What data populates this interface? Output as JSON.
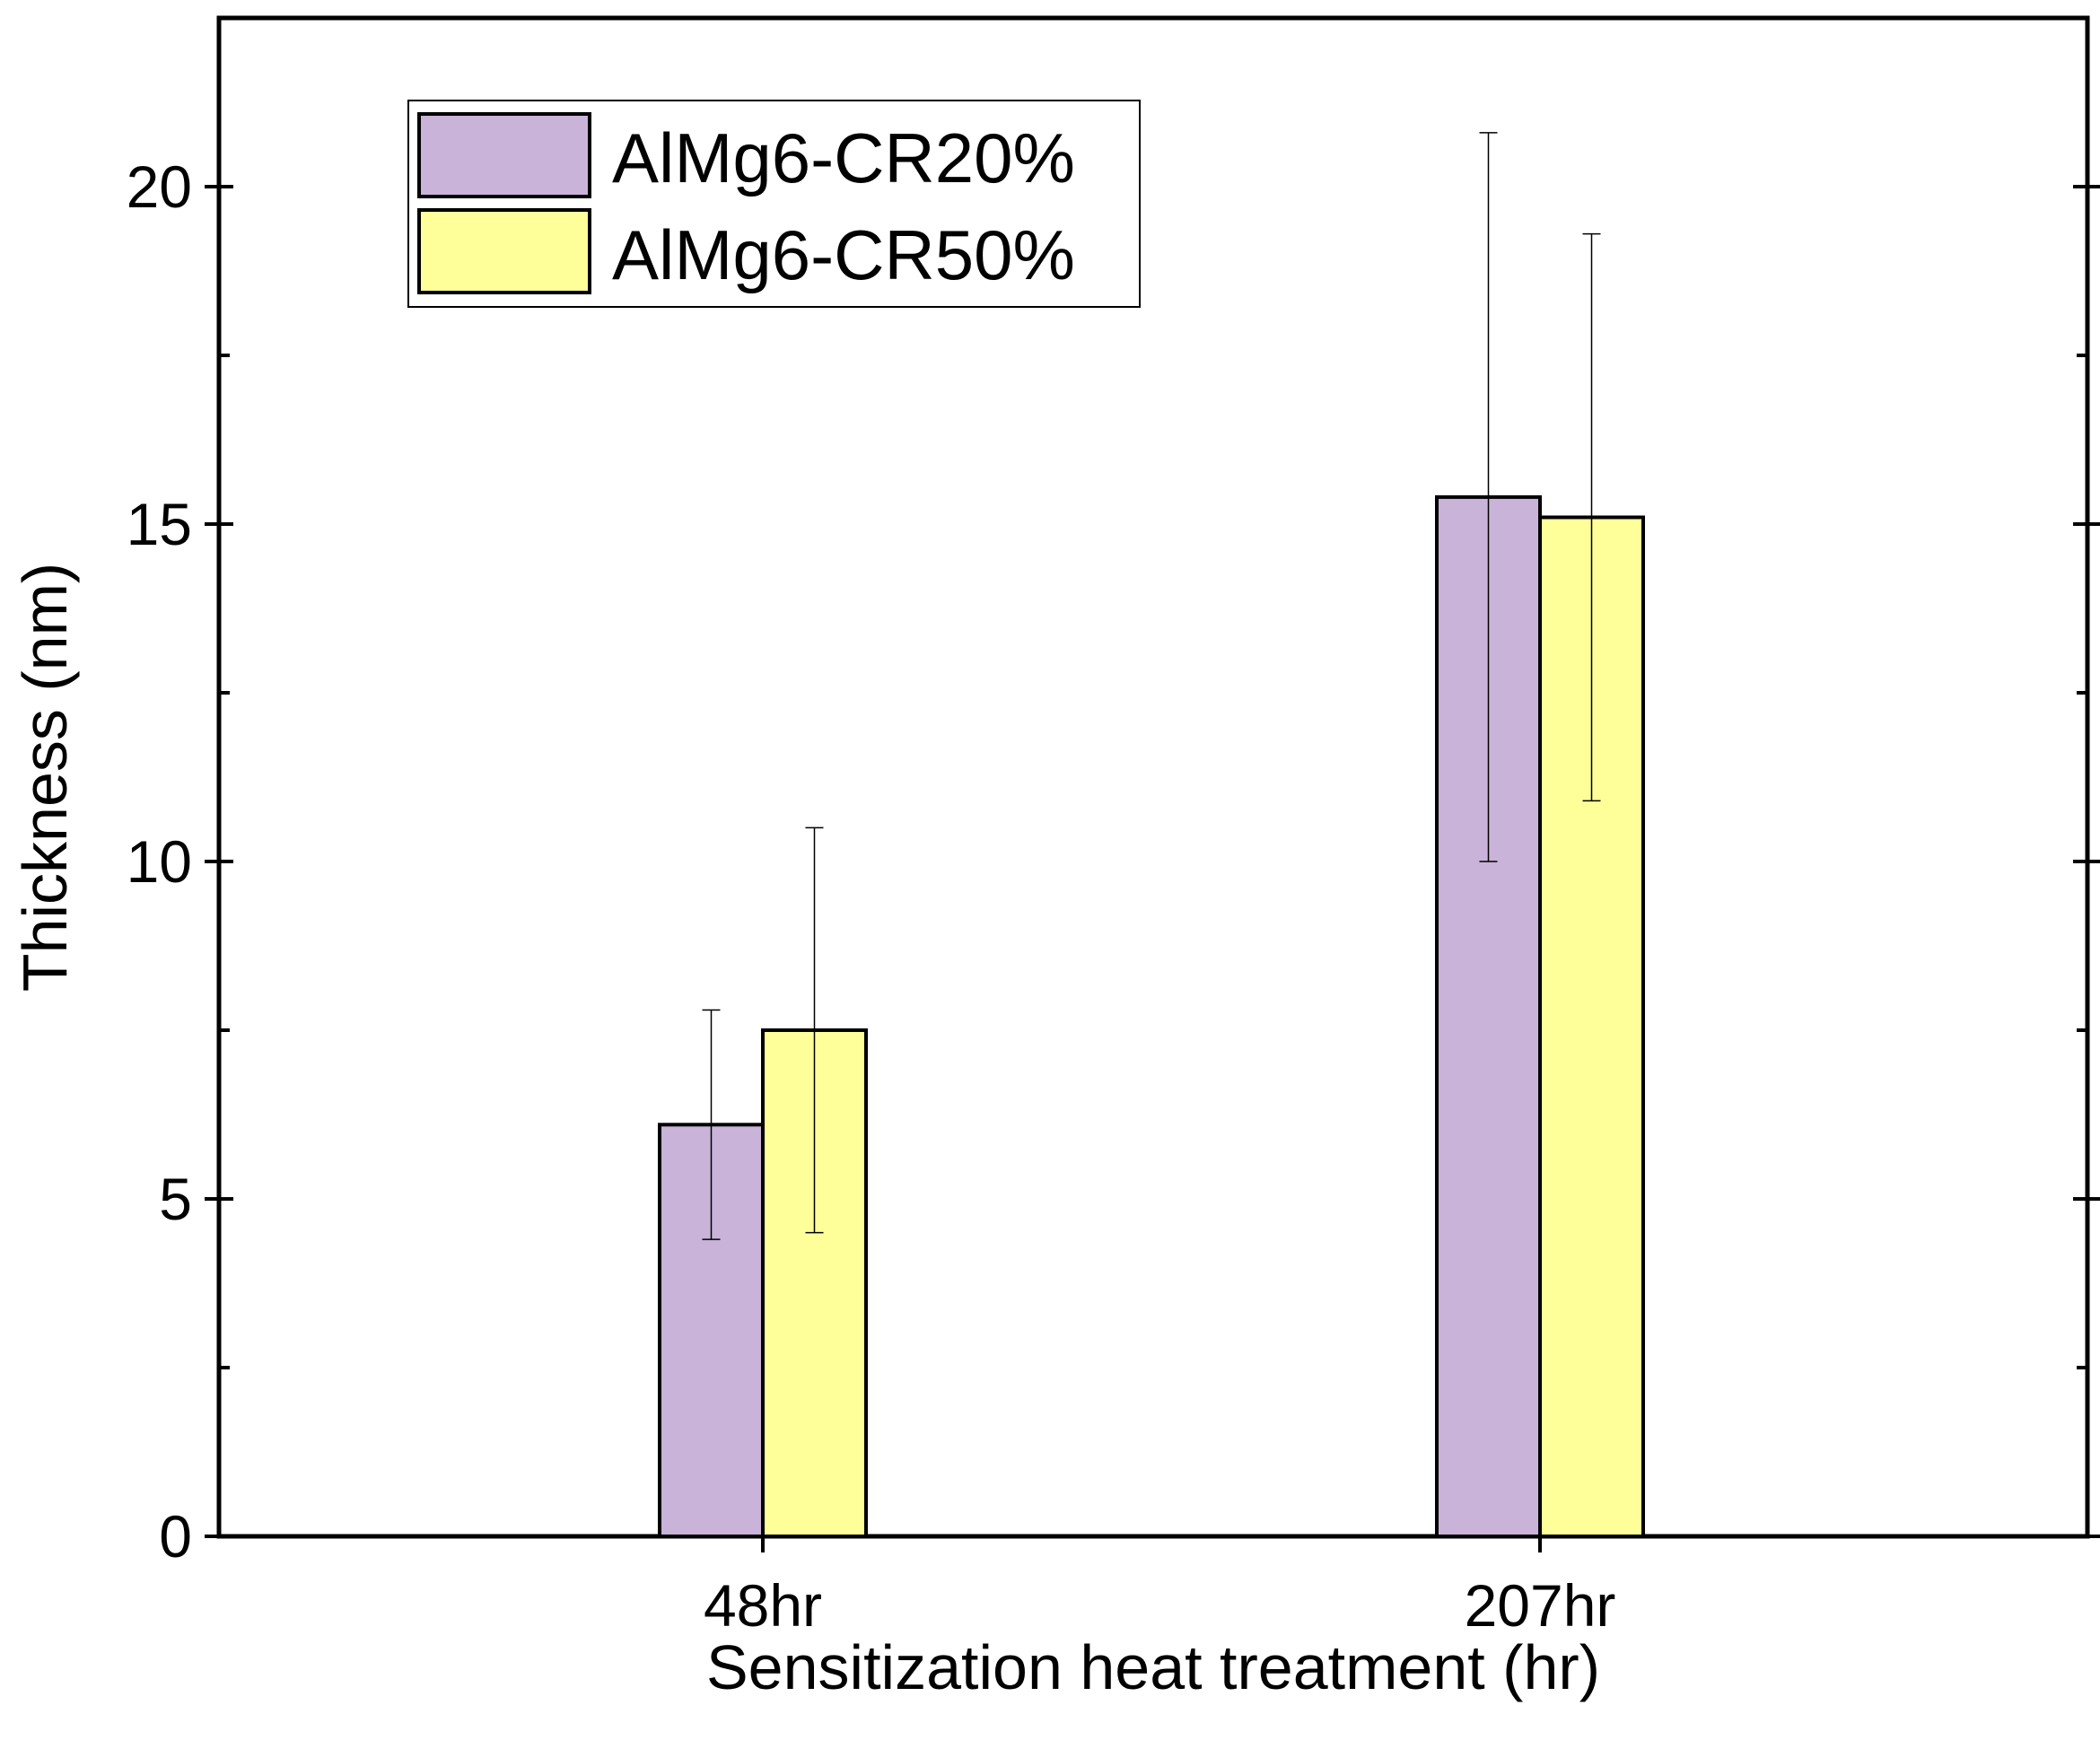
{
  "chart_data": {
    "type": "bar",
    "title": "",
    "xlabel": "Sensitization heat treatment (hr)",
    "ylabel": "Thickness (nm)",
    "categories": [
      "48hr",
      "207hr"
    ],
    "ylim": [
      0,
      22.5
    ],
    "yticks": [
      0,
      5,
      10,
      15,
      20
    ],
    "yticks_labels": [
      "0",
      "5",
      "10",
      "15",
      "20"
    ],
    "minor_yticks": [
      2.5,
      7.5,
      12.5,
      17.5
    ],
    "grid": false,
    "legend_position": "top-left",
    "error_bars": true,
    "series": [
      {
        "name": "AlMg6-CR20%",
        "color": "#C9B3D9",
        "values": [
          6.1,
          15.4
        ],
        "error_low": [
          4.4,
          10.0
        ],
        "error_high": [
          7.8,
          20.8
        ]
      },
      {
        "name": "AlMg6-CR50%",
        "color": "#FFFF99",
        "values": [
          7.5,
          15.1
        ],
        "error_low": [
          4.5,
          10.9
        ],
        "error_high": [
          10.5,
          19.3
        ]
      }
    ]
  }
}
